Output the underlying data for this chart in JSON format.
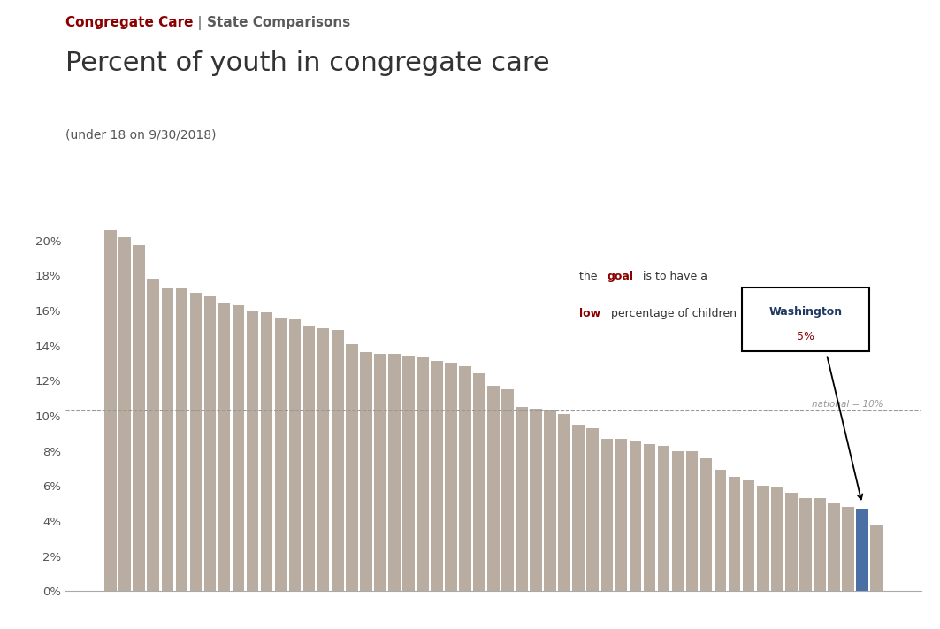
{
  "title_line1": "Congregate Care",
  "title_separator": " | ",
  "title_line2": "State Comparisons",
  "main_title": "Percent of youth in congregate care",
  "subtitle": "(under 18 on 9/30/2018)",
  "national_line": 0.103,
  "national_label": "national = 10%",
  "washington_index": 53,
  "bar_color": "#b8ada0",
  "washington_color": "#4a6fa5",
  "values": [
    0.206,
    0.202,
    0.197,
    0.178,
    0.173,
    0.173,
    0.17,
    0.168,
    0.164,
    0.163,
    0.16,
    0.159,
    0.156,
    0.155,
    0.151,
    0.15,
    0.149,
    0.141,
    0.136,
    0.135,
    0.135,
    0.134,
    0.133,
    0.131,
    0.13,
    0.128,
    0.124,
    0.117,
    0.115,
    0.105,
    0.104,
    0.103,
    0.101,
    0.095,
    0.093,
    0.087,
    0.087,
    0.086,
    0.084,
    0.083,
    0.08,
    0.08,
    0.076,
    0.069,
    0.065,
    0.063,
    0.06,
    0.059,
    0.056,
    0.053,
    0.053,
    0.05,
    0.048,
    0.047,
    0.038
  ],
  "background_color": "#ffffff",
  "title1_color": "#8b0000",
  "title2_color": "#5a5a5a",
  "main_title_color": "#333333",
  "subtitle_color": "#555555",
  "national_color": "#999999",
  "annotation_goal_color": "#8b0000",
  "annotation_low_color": "#8b0000",
  "annotation_text_color": "#333333",
  "ylim": [
    0,
    0.215
  ],
  "yticks": [
    0.0,
    0.02,
    0.04,
    0.06,
    0.08,
    0.1,
    0.12,
    0.14,
    0.16,
    0.18,
    0.2
  ],
  "yticklabels": [
    "0%",
    "2%",
    "4%",
    "6%",
    "8%",
    "10%",
    "12%",
    "14%",
    "16%",
    "18%",
    "20%"
  ]
}
